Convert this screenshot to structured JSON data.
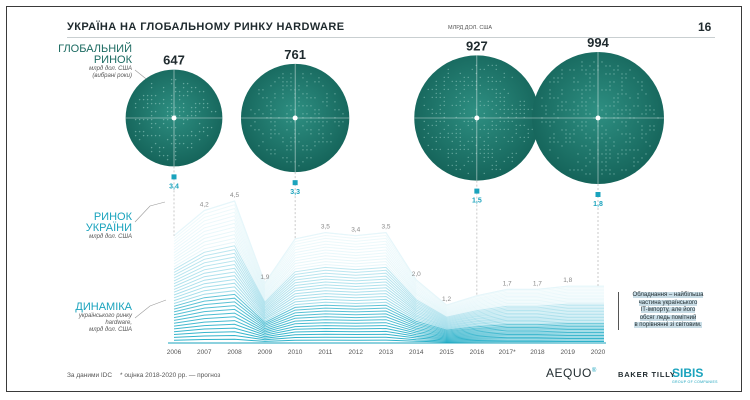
{
  "header": {
    "title": "УКРАЇНА НА ГЛОБАЛЬНОМУ РИНКУ HARDWARE",
    "unit": "МЛРД ДОЛ. США",
    "page_number": "16"
  },
  "sections": {
    "global": {
      "title_line1": "ГЛОБАЛЬНИЙ",
      "title_line2": "РИНОК",
      "sub_line1": "млрд дол. США",
      "sub_line2": "(вибрані роки)"
    },
    "ukraine": {
      "title_line1": "РИНОК",
      "title_line2": "УКРАЇНИ",
      "sub_line1": "млрд дол. США"
    },
    "dynamics": {
      "title_line1": "ДИНАМІКА",
      "sub_line1": "українського ринку",
      "sub_line2": "hardware,",
      "sub_line3": "млрд дол. США"
    }
  },
  "note": {
    "line1": "Обладнання – найбільша",
    "line2": "частина українського",
    "line3": "IT-імпорту, але його",
    "line4": "обсяг ледь помітний",
    "line5": "в порівнянні зі світовим."
  },
  "footer": {
    "source": "За даними IDC",
    "estimate_note": "* оцінка    2018-2020 рр. — прогноз"
  },
  "logos": {
    "aequo": "AEQUO",
    "aequo_mark": "®",
    "bakertilly": "BAKER TILLY",
    "sibis": "SIBIS",
    "sibis_sub": "GROUP OF COMPANIES"
  },
  "colors": {
    "teal_dark": "#17695f",
    "teal_light": "#2e8f82",
    "cyan": "#1aa3bd",
    "line": "#b5e3ee"
  },
  "chart_data": [
    {
      "type": "scatter",
      "title": "ГЛОБАЛЬНИЙ РИНОК",
      "x": [
        "2006",
        "2010",
        "2016",
        "2020"
      ],
      "values": [
        647,
        761,
        927,
        994
      ],
      "value_labels": [
        "647",
        "761",
        "927",
        "994"
      ],
      "ukraine_values": [
        3.4,
        3.3,
        1.5,
        1.8
      ],
      "ukraine_labels": [
        "3,4",
        "3,3",
        "1,5",
        "1,8"
      ]
    },
    {
      "type": "area",
      "title": "ДИНАМІКА українського ринку hardware",
      "categories": [
        "2006",
        "2007",
        "2008",
        "2009",
        "2010",
        "2011",
        "2012",
        "2013",
        "2014",
        "2015",
        "2016",
        "2017*",
        "2018",
        "2019",
        "2020"
      ],
      "values": [
        3.4,
        4.2,
        4.5,
        1.9,
        3.3,
        3.5,
        3.4,
        3.5,
        2.0,
        1.2,
        1.5,
        1.7,
        1.7,
        1.8,
        1.8
      ],
      "value_labels": [
        "",
        "4,2",
        "4,5",
        "1,9",
        "",
        "3,5",
        "3,4",
        "3,5",
        "2,0",
        "1,2",
        "",
        "1,7",
        "1,7",
        "1,8",
        ""
      ]
    }
  ]
}
